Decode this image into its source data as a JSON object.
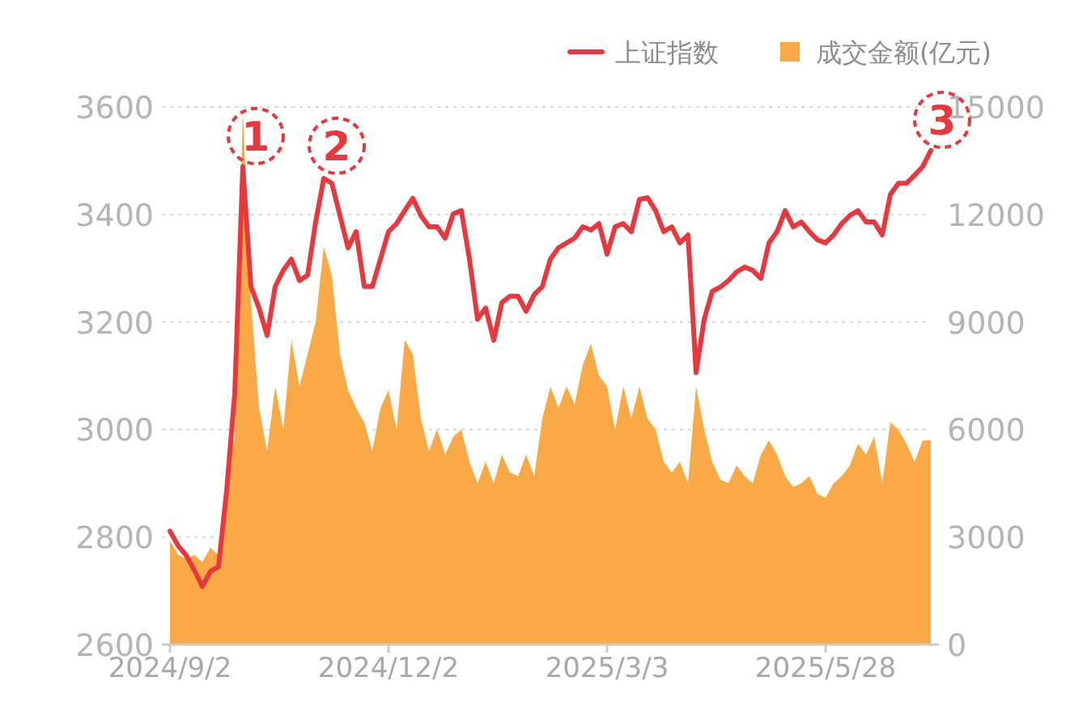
{
  "chart_data": {
    "type": "line",
    "categories": [
      "2024/9/2",
      null,
      null,
      null,
      null,
      null,
      null,
      null,
      null,
      null,
      null,
      null,
      null,
      null,
      null,
      null,
      null,
      null,
      null,
      null,
      null,
      null,
      null,
      null,
      null,
      null,
      null,
      "2024/12/2",
      null,
      null,
      null,
      null,
      null,
      null,
      null,
      null,
      null,
      null,
      null,
      null,
      null,
      null,
      null,
      null,
      null,
      null,
      null,
      null,
      null,
      null,
      null,
      null,
      null,
      null,
      "2025/3/3",
      null,
      null,
      null,
      null,
      null,
      null,
      null,
      null,
      null,
      null,
      null,
      null,
      null,
      null,
      null,
      null,
      null,
      null,
      null,
      null,
      null,
      null,
      null,
      null,
      null,
      null,
      "2025/5/28",
      null,
      null,
      null,
      null,
      null,
      null,
      null,
      null,
      null,
      null,
      null,
      null,
      null
    ],
    "series": [
      {
        "name": "成交金额(亿元)",
        "type": "area",
        "axis": "y2",
        "color": "#f9a945",
        "values": [
          2900,
          2500,
          2400,
          2500,
          2300,
          2700,
          2500,
          4800,
          5800,
          14900,
          9600,
          6600,
          5400,
          7200,
          6000,
          8500,
          7200,
          8100,
          9000,
          11100,
          10300,
          8100,
          7100,
          6600,
          6200,
          5400,
          6600,
          7100,
          6000,
          8500,
          8100,
          6300,
          5400,
          6000,
          5300,
          5800,
          6000,
          5100,
          4500,
          5100,
          4500,
          5300,
          4800,
          4700,
          5300,
          4700,
          6300,
          7200,
          6600,
          7200,
          6700,
          7800,
          8400,
          7500,
          7200,
          6000,
          7200,
          6300,
          7200,
          6300,
          6000,
          5100,
          4800,
          5100,
          4500,
          7200,
          6000,
          5100,
          4600,
          4500,
          5000,
          4700,
          4500,
          5300,
          5700,
          5300,
          4700,
          4400,
          4500,
          4700,
          4200,
          4100,
          4500,
          4700,
          5000,
          5600,
          5300,
          5800,
          4500,
          6200,
          6000,
          5600,
          5100,
          5700,
          5700
        ]
      },
      {
        "name": "上证指数",
        "color": "#e8383d",
        "values": [
          2811,
          2784,
          2766,
          2739,
          2708,
          2736,
          2745,
          2886,
          3067,
          3489,
          3266,
          3226,
          3175,
          3266,
          3296,
          3317,
          3277,
          3287,
          3386,
          3467,
          3458,
          3398,
          3338,
          3368,
          3266,
          3266,
          3317,
          3368,
          3383,
          3407,
          3430,
          3398,
          3377,
          3377,
          3356,
          3401,
          3407,
          3317,
          3205,
          3226,
          3166,
          3236,
          3248,
          3248,
          3220,
          3251,
          3266,
          3317,
          3338,
          3347,
          3356,
          3377,
          3371,
          3383,
          3326,
          3377,
          3383,
          3368,
          3428,
          3431,
          3407,
          3368,
          3377,
          3347,
          3362,
          3106,
          3205,
          3257,
          3265,
          3277,
          3293,
          3302,
          3296,
          3281,
          3347,
          3368,
          3407,
          3377,
          3386,
          3368,
          3353,
          3347,
          3362,
          3383,
          3398,
          3407,
          3386,
          3386,
          3362,
          3437,
          3458,
          3458,
          3473,
          3489,
          3519
        ]
      }
    ],
    "ylim": [
      2600,
      3600
    ],
    "yticks": [
      2600,
      2800,
      3000,
      3200,
      3400,
      3600
    ],
    "y2lim": [
      0,
      15000
    ],
    "y2ticks": [
      0,
      3000,
      6000,
      9000,
      12000,
      15000
    ],
    "grid": "y",
    "legend": "top right",
    "annotations": [
      "1",
      "2",
      "3"
    ]
  }
}
